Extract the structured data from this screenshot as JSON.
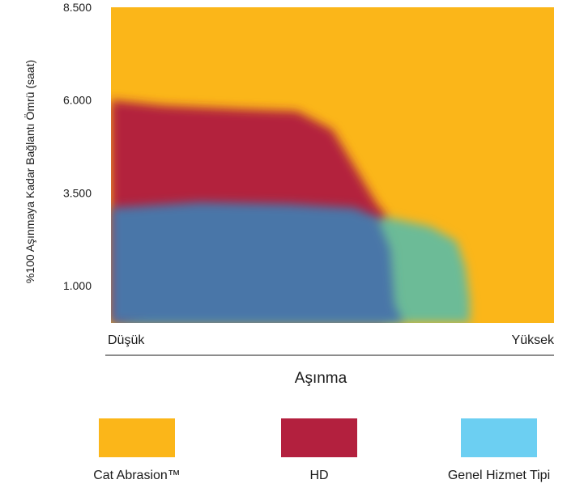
{
  "chart_data": {
    "type": "area",
    "title": "",
    "ylabel": "%100 Aşınmaya Kadar Bağlantı Ömrü (saat)",
    "xlabel": "Aşınma",
    "x_ticks": {
      "low": "Düşük",
      "high": "Yüksek"
    },
    "y_ticks": [
      {
        "value": 1000,
        "label": "1.000"
      },
      {
        "value": 3500,
        "label": "3.500"
      },
      {
        "value": 6000,
        "label": "6.000"
      },
      {
        "value": 8500,
        "label": "8.500"
      }
    ],
    "xlim": [
      0,
      1
    ],
    "ylim": [
      0,
      8500
    ],
    "grid": false,
    "legend": "bottom",
    "series": [
      {
        "name": "Cat Abrasion™",
        "color": "#FBB619",
        "boundary": [
          [
            0,
            8500
          ],
          [
            1,
            8500
          ]
        ]
      },
      {
        "name": "HD",
        "color": "#B3203E",
        "boundary": [
          [
            0,
            6000
          ],
          [
            0.12,
            5850
          ],
          [
            0.3,
            5750
          ],
          [
            0.42,
            5700
          ],
          [
            0.5,
            5200
          ],
          [
            0.55,
            4200
          ],
          [
            0.6,
            3200
          ],
          [
            0.62,
            2900
          ]
        ]
      },
      {
        "name": "Genel Hizmet Tipi",
        "color": "#6CBB97",
        "legend_color": "#6CCFF2",
        "boundary": [
          [
            0.62,
            2850
          ],
          [
            0.72,
            2600
          ],
          [
            0.78,
            2200
          ],
          [
            0.8,
            1500
          ],
          [
            0.81,
            600
          ],
          [
            0.81,
            0
          ]
        ]
      },
      {
        "name": "",
        "color": "#4A76A8",
        "legend": false,
        "boundary": [
          [
            0,
            3100
          ],
          [
            0.2,
            3250
          ],
          [
            0.4,
            3200
          ],
          [
            0.55,
            3100
          ],
          [
            0.6,
            2850
          ],
          [
            0.63,
            2000
          ],
          [
            0.64,
            500
          ],
          [
            0.66,
            0
          ]
        ]
      }
    ]
  }
}
